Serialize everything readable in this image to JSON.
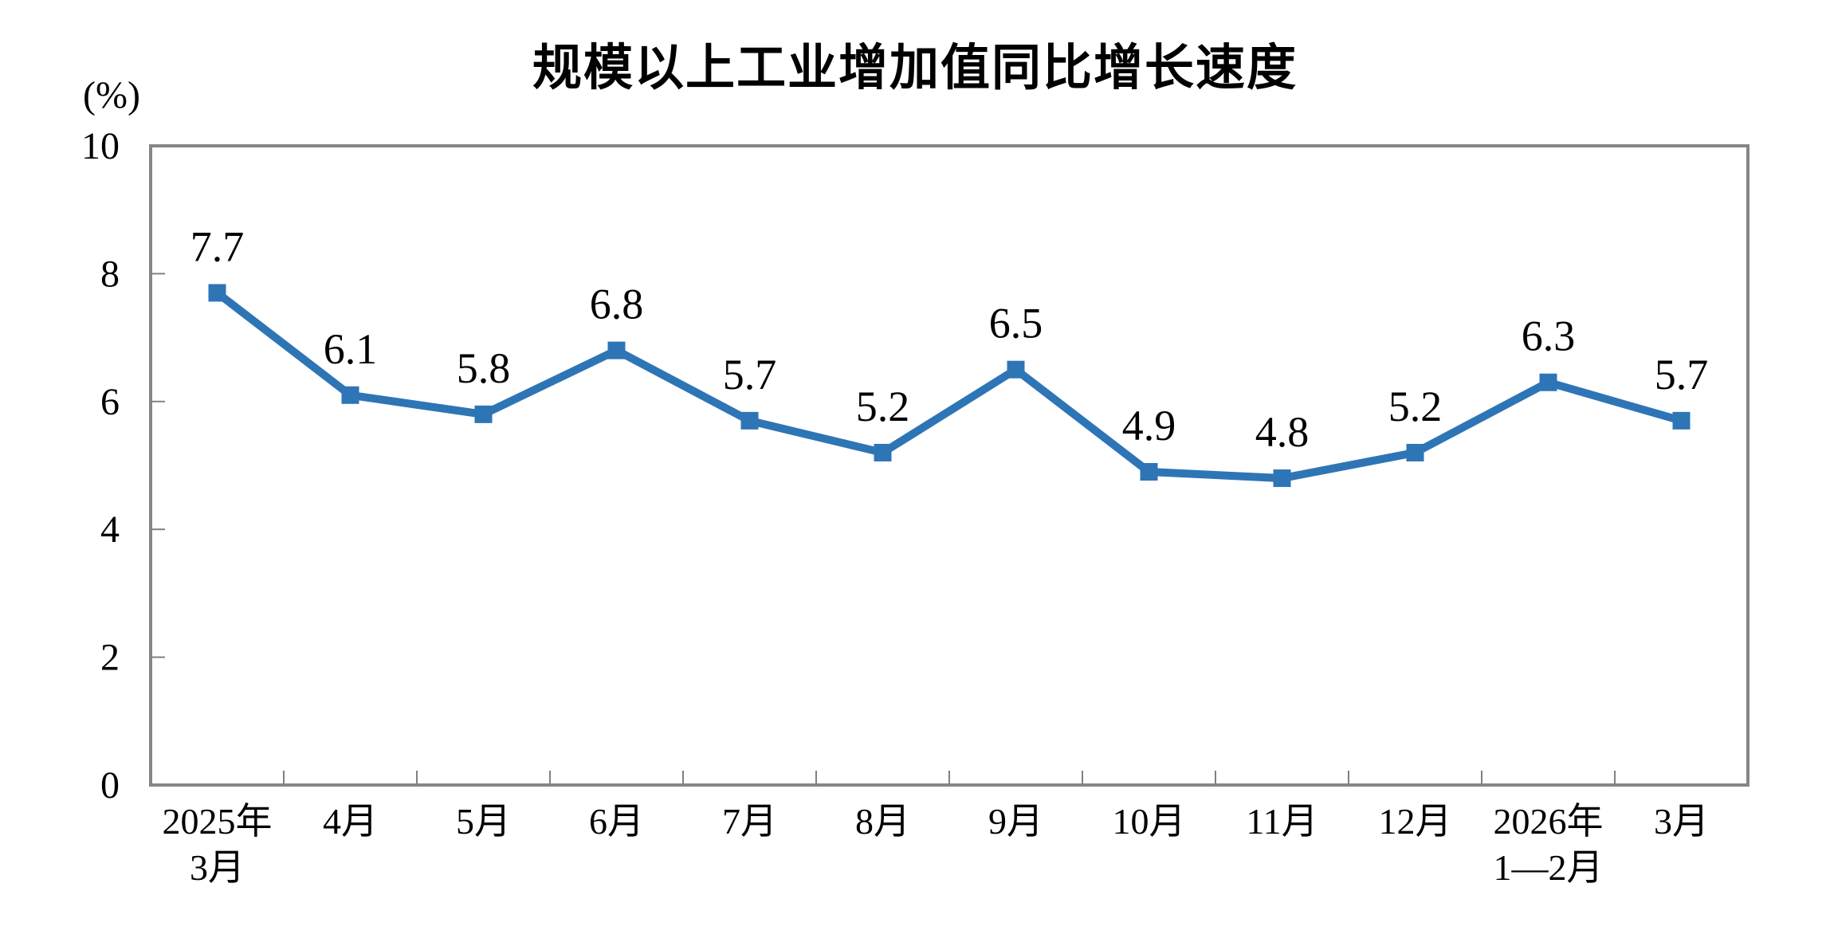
{
  "page": {
    "background_color": "#ffffff"
  },
  "chart_data": {
    "type": "line",
    "title": "规模以上工业增加值同比增长速度",
    "ylabel": "(%)",
    "xlabel": "",
    "categories": [
      [
        "2025年",
        "3月"
      ],
      [
        "4月"
      ],
      [
        "5月"
      ],
      [
        "6月"
      ],
      [
        "7月"
      ],
      [
        "8月"
      ],
      [
        "9月"
      ],
      [
        "10月"
      ],
      [
        "11月"
      ],
      [
        "12月"
      ],
      [
        "2026年",
        "1—2月"
      ],
      [
        "3月"
      ]
    ],
    "series": [
      {
        "name": "规模以上工业增加值同比增长速度",
        "values": [
          7.7,
          6.1,
          5.8,
          6.8,
          5.7,
          5.2,
          6.5,
          4.9,
          4.8,
          5.2,
          6.3,
          5.7
        ],
        "point_labels": [
          "7.7",
          "6.1",
          "5.8",
          "6.8",
          "5.7",
          "5.2",
          "6.5",
          "4.9",
          "4.8",
          "5.2",
          "6.3",
          "5.7"
        ]
      }
    ],
    "ylim": [
      0,
      10
    ],
    "yticks": [
      0,
      2,
      4,
      6,
      8,
      10
    ],
    "grid": false,
    "legend_position": "none",
    "marker_shape": "square",
    "colors": {
      "line": "#2E75B6",
      "marker": "#2E75B6",
      "axis_frame": "#868686",
      "tick": "#808080",
      "text": "#000000",
      "background": "#ffffff"
    }
  }
}
